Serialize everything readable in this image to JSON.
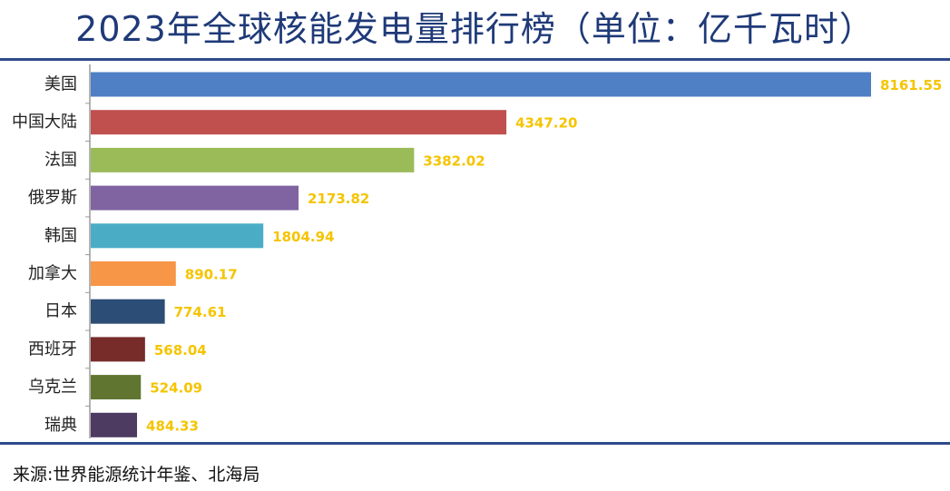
{
  "title": "2023年全球核能发电量排行榜（单位：亿千瓦时）",
  "source": "来源:世界能源统计年鉴、北海局",
  "colors": {
    "title": "#1f3a78",
    "rule": "#2e4a8a",
    "value_label": "#f5c400",
    "axis": "#9a9a9a"
  },
  "chart_data": {
    "type": "bar",
    "orientation": "horizontal",
    "title": "2023年全球核能发电量排行榜（单位：亿千瓦时）",
    "xlabel": "",
    "ylabel": "",
    "xlim": [
      0,
      8161.55
    ],
    "grid": false,
    "legend": "none",
    "categories": [
      "美国",
      "中国大陆",
      "法国",
      "俄罗斯",
      "韩国",
      "加拿大",
      "日本",
      "西班牙",
      "乌克兰",
      "瑞典"
    ],
    "values": [
      8161.55,
      4347.2,
      3382.02,
      2173.82,
      1804.94,
      890.17,
      774.61,
      568.04,
      524.09,
      484.33
    ],
    "value_labels": [
      "8161.55",
      "4347.20",
      "3382.02",
      "2173.82",
      "1804.94",
      "890.17",
      "774.61",
      "568.04",
      "524.09",
      "484.33"
    ],
    "bar_colors": [
      "#4f7fc4",
      "#c0504d",
      "#9bbb59",
      "#8064a2",
      "#4bacc6",
      "#f79646",
      "#2c4d75",
      "#772c2a",
      "#5f7530",
      "#4d3b62"
    ]
  }
}
